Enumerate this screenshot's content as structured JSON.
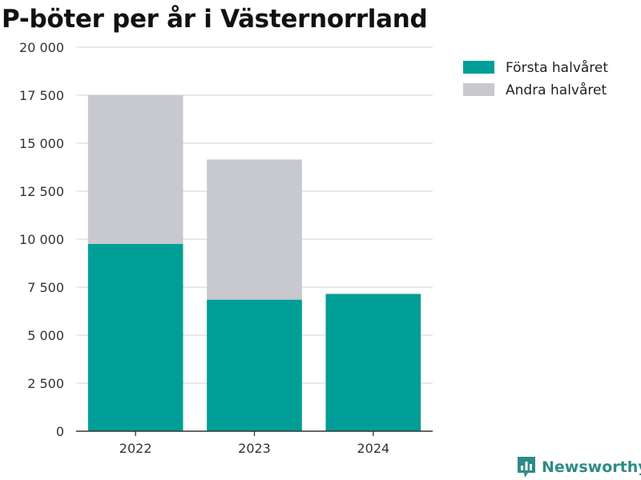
{
  "title": "P-böter per år i Västernorrland",
  "chart_data": {
    "type": "bar",
    "stacked": true,
    "categories": [
      "2022",
      "2023",
      "2024"
    ],
    "series": [
      {
        "name": "Första halvåret",
        "color": "#009e96",
        "values": [
          9750,
          6850,
          7150
        ]
      },
      {
        "name": "Andra halvåret",
        "color": "#c8c8cf",
        "values": [
          7750,
          7300,
          0
        ]
      }
    ],
    "ylim": [
      0,
      20000
    ],
    "yticks": [
      {
        "value": 0,
        "label": "0"
      },
      {
        "value": 2500,
        "label": "2 500"
      },
      {
        "value": 5000,
        "label": "5 000"
      },
      {
        "value": 7500,
        "label": "7 500"
      },
      {
        "value": 10000,
        "label": "10 000"
      },
      {
        "value": 12500,
        "label": "12 500"
      },
      {
        "value": 15000,
        "label": "15 000"
      },
      {
        "value": 17500,
        "label": "17 500"
      },
      {
        "value": 20000,
        "label": "20 000"
      }
    ],
    "grid": true,
    "legend_position": "top-right"
  },
  "brand": {
    "name": "Newsworthy",
    "icon": "bar-chart-logo-icon",
    "color": "#2e8b87"
  }
}
